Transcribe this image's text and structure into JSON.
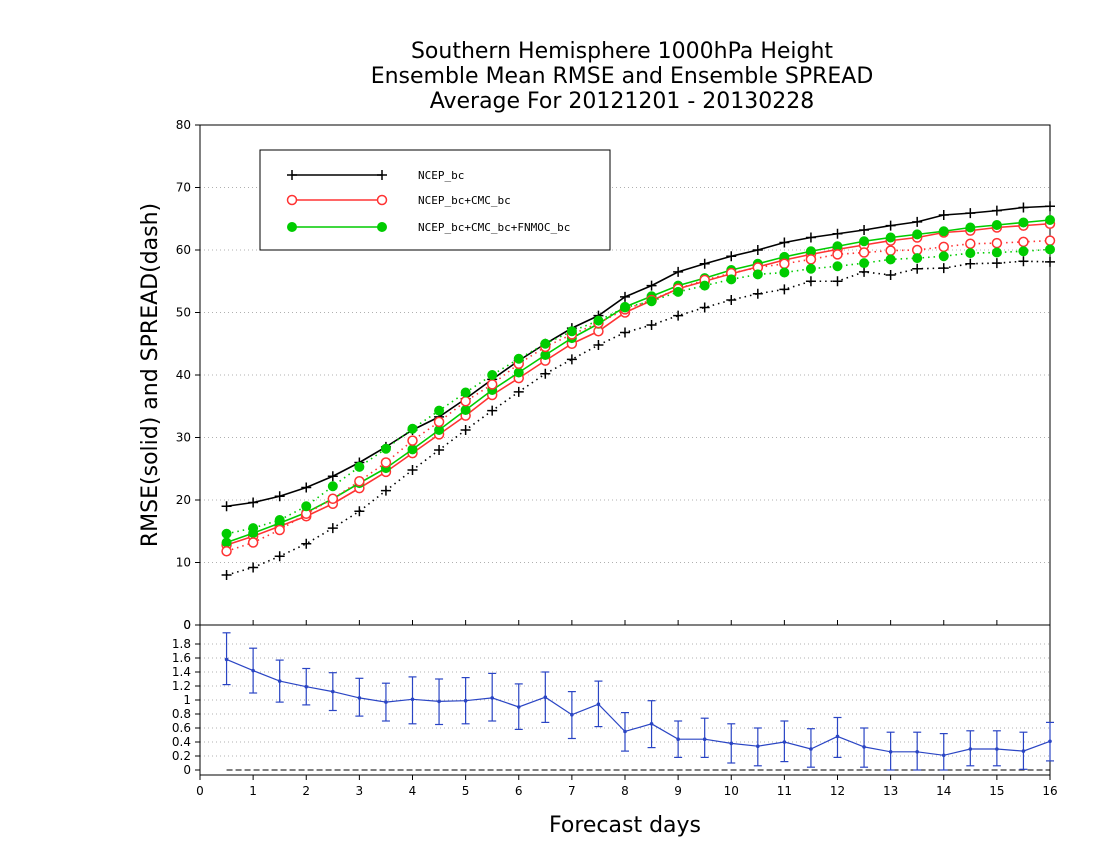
{
  "chart_data": [
    {
      "type": "line",
      "title": [
        "Southern Hemisphere 1000hPa Height",
        "Ensemble Mean RMSE and Ensemble SPREAD",
        "Average For 20121201 - 20130228"
      ],
      "ylabel": "RMSE(solid) and SPREAD(dash)",
      "ylim": [
        0,
        80
      ],
      "yticks": [
        0,
        10,
        20,
        30,
        40,
        50,
        60,
        70,
        80
      ],
      "legend": {
        "placement": "top-left"
      },
      "grid": true,
      "x": [
        0.5,
        1.0,
        1.5,
        2.0,
        2.5,
        3.0,
        3.5,
        4.0,
        4.5,
        5.0,
        5.5,
        6.0,
        6.5,
        7.0,
        7.5,
        8.0,
        8.5,
        9.0,
        9.5,
        10.0,
        10.5,
        11.0,
        11.5,
        12.0,
        12.5,
        13.0,
        13.5,
        14.0,
        14.5,
        15.0,
        15.5,
        16.0
      ],
      "series": [
        {
          "name": "NCEP_bc",
          "color": "#000000",
          "marker": "plus",
          "style": "solid",
          "values": [
            19.0,
            19.6,
            20.6,
            22.0,
            23.8,
            26.0,
            28.5,
            31.2,
            33.3,
            36.2,
            39.3,
            42.3,
            45.0,
            47.5,
            49.5,
            52.5,
            54.3,
            56.5,
            57.8,
            59.0,
            60.0,
            61.2,
            62.0,
            62.6,
            63.2,
            63.9,
            64.5,
            65.6,
            65.9,
            66.3,
            66.8,
            67.0
          ]
        },
        {
          "name": "NCEP_bc+CMC_bc",
          "color": "#ff3333",
          "marker": "circle",
          "style": "solid",
          "values": [
            12.8,
            14.2,
            15.8,
            17.4,
            19.4,
            21.9,
            24.5,
            27.5,
            30.5,
            33.5,
            36.8,
            39.5,
            42.3,
            45.0,
            47.0,
            50.0,
            51.9,
            53.8,
            55.0,
            56.2,
            57.3,
            58.4,
            59.3,
            60.1,
            60.8,
            61.5,
            62.0,
            62.8,
            63.1,
            63.6,
            63.9,
            64.2
          ]
        },
        {
          "name": "NCEP_bc+CMC_bc+FNMOC_bc",
          "color": "#00cc00",
          "marker": "dot",
          "style": "solid",
          "values": [
            13.2,
            14.7,
            16.3,
            18.0,
            20.2,
            22.7,
            25.1,
            28.1,
            31.2,
            34.4,
            37.6,
            40.4,
            43.2,
            45.9,
            48.2,
            50.9,
            52.6,
            54.3,
            55.5,
            56.8,
            57.8,
            58.9,
            59.8,
            60.6,
            61.4,
            62.0,
            62.5,
            63.0,
            63.6,
            64.0,
            64.4,
            64.8
          ]
        },
        {
          "name": "NCEP_bc",
          "color": "#000000",
          "marker": "plus",
          "style": "dotted",
          "values": [
            8.0,
            9.2,
            11.0,
            13.0,
            15.5,
            18.2,
            21.5,
            24.8,
            28.0,
            31.2,
            34.3,
            37.3,
            40.2,
            42.5,
            44.8,
            46.8,
            48.0,
            49.5,
            50.8,
            52.0,
            53.0,
            53.7,
            55.0,
            55.0,
            56.5,
            56.0,
            57.0,
            57.1,
            57.8,
            57.9,
            58.2,
            58.1
          ]
        },
        {
          "name": "NCEP_bc+CMC_bc",
          "color": "#ff3333",
          "marker": "circle",
          "style": "dotted",
          "values": [
            11.8,
            13.2,
            15.2,
            17.8,
            20.2,
            23.0,
            26.0,
            29.5,
            32.5,
            35.8,
            38.5,
            41.8,
            44.5,
            46.5,
            48.3,
            50.5,
            52.0,
            53.8,
            55.2,
            56.3,
            57.2,
            57.8,
            58.5,
            59.3,
            59.6,
            59.9,
            60.0,
            60.5,
            61.0,
            61.1,
            61.3,
            61.5
          ]
        },
        {
          "name": "NCEP_bc+CMC_bc+FNMOC_bc",
          "color": "#00cc00",
          "marker": "dot",
          "style": "dotted",
          "values": [
            14.6,
            15.5,
            16.8,
            19.0,
            22.2,
            25.3,
            28.2,
            31.4,
            34.3,
            37.2,
            40.0,
            42.6,
            45.0,
            47.0,
            48.7,
            50.8,
            51.8,
            53.3,
            54.3,
            55.3,
            56.1,
            56.4,
            57.0,
            57.4,
            57.9,
            58.5,
            58.7,
            59.0,
            59.5,
            59.6,
            59.8,
            60.1
          ]
        }
      ]
    },
    {
      "type": "line",
      "xlabel": "Forecast days",
      "xlim": [
        0,
        16
      ],
      "xticks": [
        0,
        1,
        2,
        3,
        4,
        5,
        6,
        7,
        8,
        9,
        10,
        11,
        12,
        13,
        14,
        15,
        16
      ],
      "ylim": [
        0,
        2
      ],
      "yticks": [
        0,
        0.2,
        0.4,
        0.6,
        0.8,
        1,
        1.2,
        1.4,
        1.6,
        1.8
      ],
      "ytick_labels": [
        "0",
        "0.2",
        "0.4",
        "0.6",
        "0.8",
        "1",
        "1.2",
        "1.4",
        "1.6",
        "1.8"
      ],
      "top_label": "0",
      "grid": true,
      "zero_line": true,
      "x": [
        0.5,
        1.0,
        1.5,
        2.0,
        2.5,
        3.0,
        3.5,
        4.0,
        4.5,
        5.0,
        5.5,
        6.0,
        6.5,
        7.0,
        7.5,
        8.0,
        8.5,
        9.0,
        9.5,
        10.0,
        10.5,
        11.0,
        11.5,
        12.0,
        12.5,
        13.0,
        13.5,
        14.0,
        14.5,
        15.0,
        15.5,
        16.0
      ],
      "series": [
        {
          "color": "#2a45c4",
          "style": "solid",
          "values": [
            1.58,
            1.42,
            1.27,
            1.19,
            1.12,
            1.03,
            0.97,
            1.01,
            0.98,
            0.99,
            1.03,
            0.9,
            1.04,
            0.79,
            0.94,
            0.55,
            0.66,
            0.44,
            0.44,
            0.38,
            0.34,
            0.4,
            0.3,
            0.48,
            0.33,
            0.26,
            0.26,
            0.21,
            0.3,
            0.3,
            0.27,
            0.41
          ],
          "error_low": [
            1.22,
            1.1,
            0.97,
            0.93,
            0.85,
            0.77,
            0.7,
            0.66,
            0.65,
            0.66,
            0.7,
            0.58,
            0.68,
            0.45,
            0.62,
            0.27,
            0.32,
            0.18,
            0.18,
            0.1,
            0.06,
            0.12,
            0.04,
            0.18,
            0.04,
            0.0,
            0.0,
            0.0,
            0.06,
            0.06,
            0.01,
            0.13
          ],
          "error_high": [
            1.96,
            1.74,
            1.57,
            1.45,
            1.39,
            1.31,
            1.24,
            1.33,
            1.3,
            1.32,
            1.38,
            1.23,
            1.4,
            1.12,
            1.27,
            0.82,
            0.99,
            0.7,
            0.74,
            0.66,
            0.6,
            0.7,
            0.59,
            0.75,
            0.6,
            0.54,
            0.54,
            0.52,
            0.56,
            0.56,
            0.54,
            0.68
          ]
        }
      ]
    }
  ]
}
